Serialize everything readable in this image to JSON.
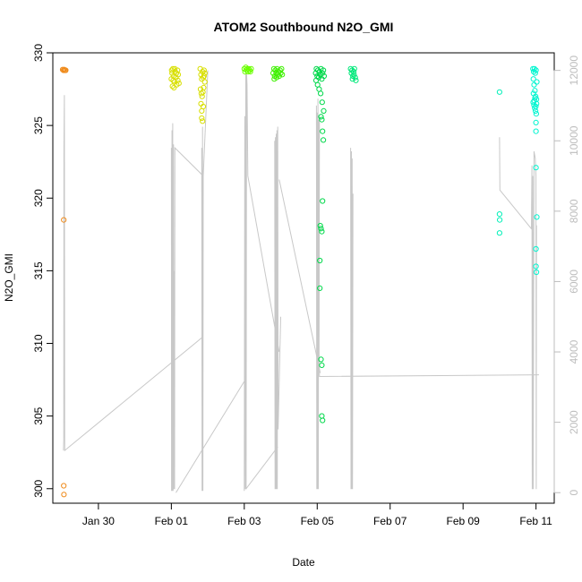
{
  "chart_data": {
    "type": "scatter",
    "title": "ATOM2 Southbound N2O_GMI",
    "xlabel": "Date",
    "ylabel": "N2O_GMI",
    "xlim": [
      "2018-01-28T18:00",
      "2018-02-11T12:00"
    ],
    "ylim": [
      299,
      330
    ],
    "y2lim": [
      -300,
      12500
    ],
    "x_ticks": [
      {
        "x": "2018-01-30",
        "label": "Jan 30"
      },
      {
        "x": "2018-02-01",
        "label": "Feb 01"
      },
      {
        "x": "2018-02-03",
        "label": "Feb 03"
      },
      {
        "x": "2018-02-05",
        "label": "Feb 05"
      },
      {
        "x": "2018-02-07",
        "label": "Feb 07"
      },
      {
        "x": "2018-02-09",
        "label": "Feb 09"
      },
      {
        "x": "2018-02-11",
        "label": "Feb 11"
      }
    ],
    "y_ticks": [
      300,
      305,
      310,
      315,
      320,
      325,
      330
    ],
    "y2_ticks": [
      0,
      2000,
      4000,
      6000,
      8000,
      10000,
      12000
    ],
    "y2_color": "#bdbdbd",
    "altitude_line_color": "#c8c8c8",
    "grid": false,
    "color_mapping": "points colored by date (orange to cyan)",
    "flights": [
      {
        "color": "#ef8a1a",
        "points": [
          [
            "2018-01-29T00:30",
            328.85
          ],
          [
            "2018-01-29T01:00",
            328.8
          ],
          [
            "2018-01-29T01:30",
            328.85
          ],
          [
            "2018-01-29T02:00",
            328.8
          ],
          [
            "2018-01-29T02:30",
            328.8
          ],
          [
            "2018-01-29T01:10",
            318.5
          ],
          [
            "2018-01-29T01:10",
            300.2
          ],
          [
            "2018-01-29T01:20",
            299.6
          ]
        ]
      },
      {
        "color": "#d8df00",
        "points": [
          [
            "2018-02-01T00:00",
            328.2
          ],
          [
            "2018-02-01T00:30",
            328.6
          ],
          [
            "2018-02-01T01:00",
            328.9
          ],
          [
            "2018-02-01T01:30",
            328.4
          ],
          [
            "2018-02-01T02:00",
            328.0
          ],
          [
            "2018-02-01T02:30",
            328.7
          ],
          [
            "2018-02-01T03:00",
            328.3
          ],
          [
            "2018-02-01T03:30",
            327.8
          ],
          [
            "2018-02-01T04:00",
            328.8
          ],
          [
            "2018-02-01T04:30",
            328.5
          ],
          [
            "2018-02-01T05:00",
            327.9
          ],
          [
            "2018-02-01T00:15",
            328.8
          ],
          [
            "2018-02-01T00:45",
            327.7
          ],
          [
            "2018-02-01T01:15",
            328.1
          ],
          [
            "2018-02-01T02:15",
            328.9
          ],
          [
            "2018-02-01T03:15",
            328.6
          ],
          [
            "2018-02-01T04:15",
            328.1
          ],
          [
            "2018-02-01T01:45",
            327.6
          ],
          [
            "2018-02-01T19:00",
            328.9
          ],
          [
            "2018-02-01T19:30",
            328.5
          ],
          [
            "2018-02-01T20:00",
            328.2
          ],
          [
            "2018-02-01T20:30",
            328.7
          ],
          [
            "2018-02-01T21:00",
            328.3
          ],
          [
            "2018-02-01T21:30",
            328.8
          ],
          [
            "2018-02-01T22:00",
            328.0
          ],
          [
            "2018-02-01T19:15",
            327.5
          ],
          [
            "2018-02-01T19:45",
            327.2
          ],
          [
            "2018-02-01T20:15",
            327.0
          ],
          [
            "2018-02-01T20:45",
            327.3
          ],
          [
            "2018-02-01T21:15",
            327.6
          ],
          [
            "2018-02-01T19:30",
            326.5
          ],
          [
            "2018-02-01T20:00",
            326.0
          ],
          [
            "2018-02-01T20:00",
            325.5
          ],
          [
            "2018-02-01T20:30",
            325.3
          ],
          [
            "2018-02-01T21:00",
            326.3
          ],
          [
            "2018-02-01T21:30",
            328.4
          ],
          [
            "2018-02-01T22:00",
            328.6
          ]
        ]
      },
      {
        "color": "#6bff00",
        "points": [
          [
            "2018-02-03T00:00",
            328.9
          ],
          [
            "2018-02-03T00:30",
            328.7
          ],
          [
            "2018-02-03T01:00",
            329.0
          ],
          [
            "2018-02-03T01:30",
            328.8
          ],
          [
            "2018-02-03T02:00",
            328.9
          ],
          [
            "2018-02-03T02:30",
            328.7
          ],
          [
            "2018-02-03T03:00",
            328.9
          ],
          [
            "2018-02-03T03:30",
            328.8
          ],
          [
            "2018-02-03T04:00",
            328.7
          ],
          [
            "2018-02-03T04:30",
            328.9
          ]
        ]
      },
      {
        "color": "#3ef000",
        "points": [
          [
            "2018-02-03T19:00",
            328.6
          ],
          [
            "2018-02-03T19:30",
            328.9
          ],
          [
            "2018-02-03T20:00",
            328.4
          ],
          [
            "2018-02-03T20:30",
            328.8
          ],
          [
            "2018-02-03T21:00",
            328.6
          ],
          [
            "2018-02-03T21:30",
            328.9
          ],
          [
            "2018-02-03T22:00",
            328.5
          ],
          [
            "2018-02-03T22:30",
            328.7
          ],
          [
            "2018-02-03T23:00",
            328.4
          ],
          [
            "2018-02-03T23:30",
            328.8
          ],
          [
            "2018-02-04T00:00",
            328.6
          ],
          [
            "2018-02-04T00:30",
            328.9
          ],
          [
            "2018-02-04T01:00",
            328.5
          ],
          [
            "2018-02-03T19:45",
            328.2
          ],
          [
            "2018-02-03T21:15",
            328.3
          ]
        ]
      },
      {
        "color": "#00d84a",
        "points": [
          [
            "2018-02-04T23:00",
            328.6
          ],
          [
            "2018-02-04T23:30",
            328.9
          ],
          [
            "2018-02-05T00:00",
            328.4
          ],
          [
            "2018-02-05T00:30",
            328.8
          ],
          [
            "2018-02-05T01:00",
            328.3
          ],
          [
            "2018-02-05T01:30",
            328.7
          ],
          [
            "2018-02-05T02:00",
            328.5
          ],
          [
            "2018-02-05T02:30",
            328.9
          ],
          [
            "2018-02-05T03:00",
            328.2
          ],
          [
            "2018-02-05T03:30",
            328.6
          ],
          [
            "2018-02-05T04:00",
            328.8
          ],
          [
            "2018-02-05T04:30",
            328.4
          ],
          [
            "2018-02-04T23:15",
            328.1
          ],
          [
            "2018-02-05T00:15",
            327.8
          ],
          [
            "2018-02-05T01:15",
            327.5
          ],
          [
            "2018-02-05T02:15",
            327.2
          ],
          [
            "2018-02-05T03:15",
            326.6
          ],
          [
            "2018-02-05T04:15",
            326.0
          ],
          [
            "2018-02-05T02:30",
            325.6
          ],
          [
            "2018-02-05T03:00",
            325.4
          ],
          [
            "2018-02-05T03:30",
            324.6
          ],
          [
            "2018-02-05T04:00",
            324.0
          ],
          [
            "2018-02-05T03:30",
            319.8
          ],
          [
            "2018-02-05T02:00",
            318.1
          ],
          [
            "2018-02-05T02:30",
            317.9
          ],
          [
            "2018-02-05T03:00",
            317.7
          ],
          [
            "2018-02-05T01:45",
            315.7
          ],
          [
            "2018-02-05T01:45",
            313.8
          ],
          [
            "2018-02-05T02:30",
            308.9
          ],
          [
            "2018-02-05T03:00",
            308.5
          ],
          [
            "2018-02-05T03:00",
            305.0
          ],
          [
            "2018-02-05T03:30",
            304.7
          ]
        ]
      },
      {
        "color": "#00e87a",
        "points": [
          [
            "2018-02-05T22:00",
            328.9
          ],
          [
            "2018-02-05T22:30",
            328.6
          ],
          [
            "2018-02-05T23:00",
            328.8
          ],
          [
            "2018-02-05T23:30",
            328.4
          ],
          [
            "2018-02-06T00:00",
            328.7
          ],
          [
            "2018-02-06T00:30",
            328.9
          ],
          [
            "2018-02-06T01:00",
            328.3
          ],
          [
            "2018-02-06T01:30",
            328.1
          ],
          [
            "2018-02-06T00:15",
            328.5
          ],
          [
            "2018-02-05T23:15",
            328.2
          ]
        ]
      },
      {
        "color": "#00f0b8",
        "points": [
          [
            "2018-02-10T00:00",
            327.3
          ],
          [
            "2018-02-10T00:00",
            318.9
          ],
          [
            "2018-02-10T00:05",
            318.5
          ],
          [
            "2018-02-10T00:00",
            317.6
          ]
        ]
      },
      {
        "color": "#00f5d0",
        "points": [
          [
            "2018-02-10T22:00",
            328.9
          ],
          [
            "2018-02-10T22:30",
            328.7
          ],
          [
            "2018-02-10T23:00",
            328.9
          ],
          [
            "2018-02-10T23:30",
            328.6
          ],
          [
            "2018-02-11T00:00",
            328.8
          ],
          [
            "2018-02-10T22:15",
            328.2
          ],
          [
            "2018-02-10T22:45",
            327.8
          ],
          [
            "2018-02-10T23:15",
            327.4
          ],
          [
            "2018-02-10T23:45",
            327.0
          ],
          [
            "2018-02-11T00:15",
            326.8
          ],
          [
            "2018-02-10T22:10",
            326.6
          ],
          [
            "2018-02-10T22:40",
            326.4
          ],
          [
            "2018-02-10T23:10",
            326.2
          ],
          [
            "2018-02-10T23:40",
            326.0
          ],
          [
            "2018-02-11T00:10",
            325.8
          ],
          [
            "2018-02-10T22:20",
            327.2
          ],
          [
            "2018-02-10T23:20",
            326.9
          ],
          [
            "2018-02-11T00:20",
            326.5
          ],
          [
            "2018-02-10T22:50",
            326.7
          ],
          [
            "2018-02-10T23:50",
            326.3
          ],
          [
            "2018-02-11T00:30",
            328.0
          ],
          [
            "2018-02-11T00:00",
            325.2
          ],
          [
            "2018-02-11T00:00",
            324.6
          ],
          [
            "2018-02-11T00:00",
            322.1
          ],
          [
            "2018-02-11T00:30",
            318.7
          ],
          [
            "2018-02-11T00:00",
            316.5
          ],
          [
            "2018-02-11T00:00",
            315.3
          ],
          [
            "2018-02-11T00:15",
            314.9
          ]
        ]
      }
    ],
    "altitude_paths": [
      [
        [
          "2018-01-29T01:00",
          1200
        ],
        [
          "2018-01-29T01:10",
          1500
        ],
        [
          "2018-01-29T01:20",
          9800
        ],
        [
          "2018-01-29T01:35",
          11300
        ],
        [
          "2018-01-29T01:50",
          1200
        ],
        [
          "2018-02-01T20:00",
          4400
        ]
      ],
      [
        [
          "2018-02-01T00:00",
          9800
        ],
        [
          "2018-02-01T00:10",
          50
        ],
        [
          "2018-02-01T00:25",
          10300
        ],
        [
          "2018-02-01T00:40",
          50
        ],
        [
          "2018-02-01T00:55",
          10500
        ],
        [
          "2018-02-01T01:10",
          50
        ],
        [
          "2018-02-01T01:25",
          9900
        ],
        [
          "2018-02-01T01:40",
          100
        ],
        [
          "2018-02-01T01:55",
          6300
        ],
        [
          "2018-02-01T02:10",
          100
        ],
        [
          "2018-02-01T02:20",
          9800
        ],
        [
          "2018-02-01T21:00",
          9000
        ]
      ],
      [
        [
          "2018-02-01T20:00",
          9800
        ],
        [
          "2018-02-01T20:15",
          50
        ],
        [
          "2018-02-01T20:30",
          10400
        ],
        [
          "2018-02-01T20:45",
          50
        ],
        [
          "2018-02-01T21:00",
          9000
        ],
        [
          "2018-02-02T00:00",
          12000
        ]
      ],
      [
        [
          "2018-02-01T03:00",
          0
        ],
        [
          "2018-02-03T00:30",
          3200
        ]
      ],
      [
        [
          "2018-02-03T00:00",
          50
        ],
        [
          "2018-02-03T00:20",
          10700
        ],
        [
          "2018-02-03T00:40",
          100
        ],
        [
          "2018-02-03T01:00",
          11900
        ],
        [
          "2018-02-03T01:15",
          100
        ],
        [
          "2018-02-03T01:30",
          11900
        ],
        [
          "2018-02-03T01:50",
          11600
        ],
        [
          "2018-02-03T02:20",
          9000
        ],
        [
          "2018-02-03T23:00",
          4000
        ]
      ],
      [
        [
          "2018-02-03T01:00",
          100
        ],
        [
          "2018-02-03T22:00",
          1300
        ]
      ],
      [
        [
          "2018-02-03T20:00",
          10000
        ],
        [
          "2018-02-03T20:15",
          100
        ],
        [
          "2018-02-03T20:30",
          10100
        ],
        [
          "2018-02-03T20:45",
          100
        ],
        [
          "2018-02-03T21:00",
          10200
        ],
        [
          "2018-02-03T21:15",
          100
        ],
        [
          "2018-02-03T21:30",
          10300
        ],
        [
          "2018-02-03T21:45",
          100
        ],
        [
          "2018-02-03T22:00",
          10400
        ],
        [
          "2018-02-03T22:15",
          1800
        ],
        [
          "2018-02-04T00:00",
          5000
        ]
      ],
      [
        [
          "2018-02-03T23:00",
          8900
        ],
        [
          "2018-02-05T02:00",
          3400
        ]
      ],
      [
        [
          "2018-02-04T23:30",
          11000
        ],
        [
          "2018-02-04T23:45",
          100
        ],
        [
          "2018-02-05T00:00",
          10800
        ],
        [
          "2018-02-05T00:15",
          100
        ],
        [
          "2018-02-05T00:30",
          11200
        ],
        [
          "2018-02-05T00:45",
          100
        ],
        [
          "2018-02-05T01:00",
          10600
        ],
        [
          "2018-02-05T01:10",
          3500
        ],
        [
          "2018-02-05T01:30",
          10700
        ]
      ],
      [
        [
          "2018-02-05T01:00",
          4000
        ],
        [
          "2018-02-05T01:30",
          3300
        ],
        [
          "2018-02-11T02:00",
          3350
        ]
      ],
      [
        [
          "2018-02-05T22:00",
          9800
        ],
        [
          "2018-02-05T22:15",
          100
        ],
        [
          "2018-02-05T22:30",
          9700
        ],
        [
          "2018-02-05T22:45",
          100
        ],
        [
          "2018-02-05T23:00",
          9500
        ],
        [
          "2018-02-05T23:15",
          100
        ],
        [
          "2018-02-05T23:30",
          8500
        ]
      ],
      [
        [
          "2018-02-10T00:00",
          10100
        ],
        [
          "2018-02-10T00:15",
          8600
        ],
        [
          "2018-02-10T21:00",
          7500
        ],
        [
          "2018-02-10T21:20",
          9300
        ],
        [
          "2018-02-10T21:30",
          100
        ],
        [
          "2018-02-10T21:50",
          9000
        ],
        [
          "2018-02-10T22:10",
          100
        ],
        [
          "2018-02-10T22:40",
          9700
        ],
        [
          "2018-02-10T23:30",
          9500
        ],
        [
          "2018-02-11T00:00",
          9000
        ],
        [
          "2018-02-11T00:10",
          100
        ],
        [
          "2018-02-11T00:20",
          7600
        ]
      ]
    ]
  }
}
